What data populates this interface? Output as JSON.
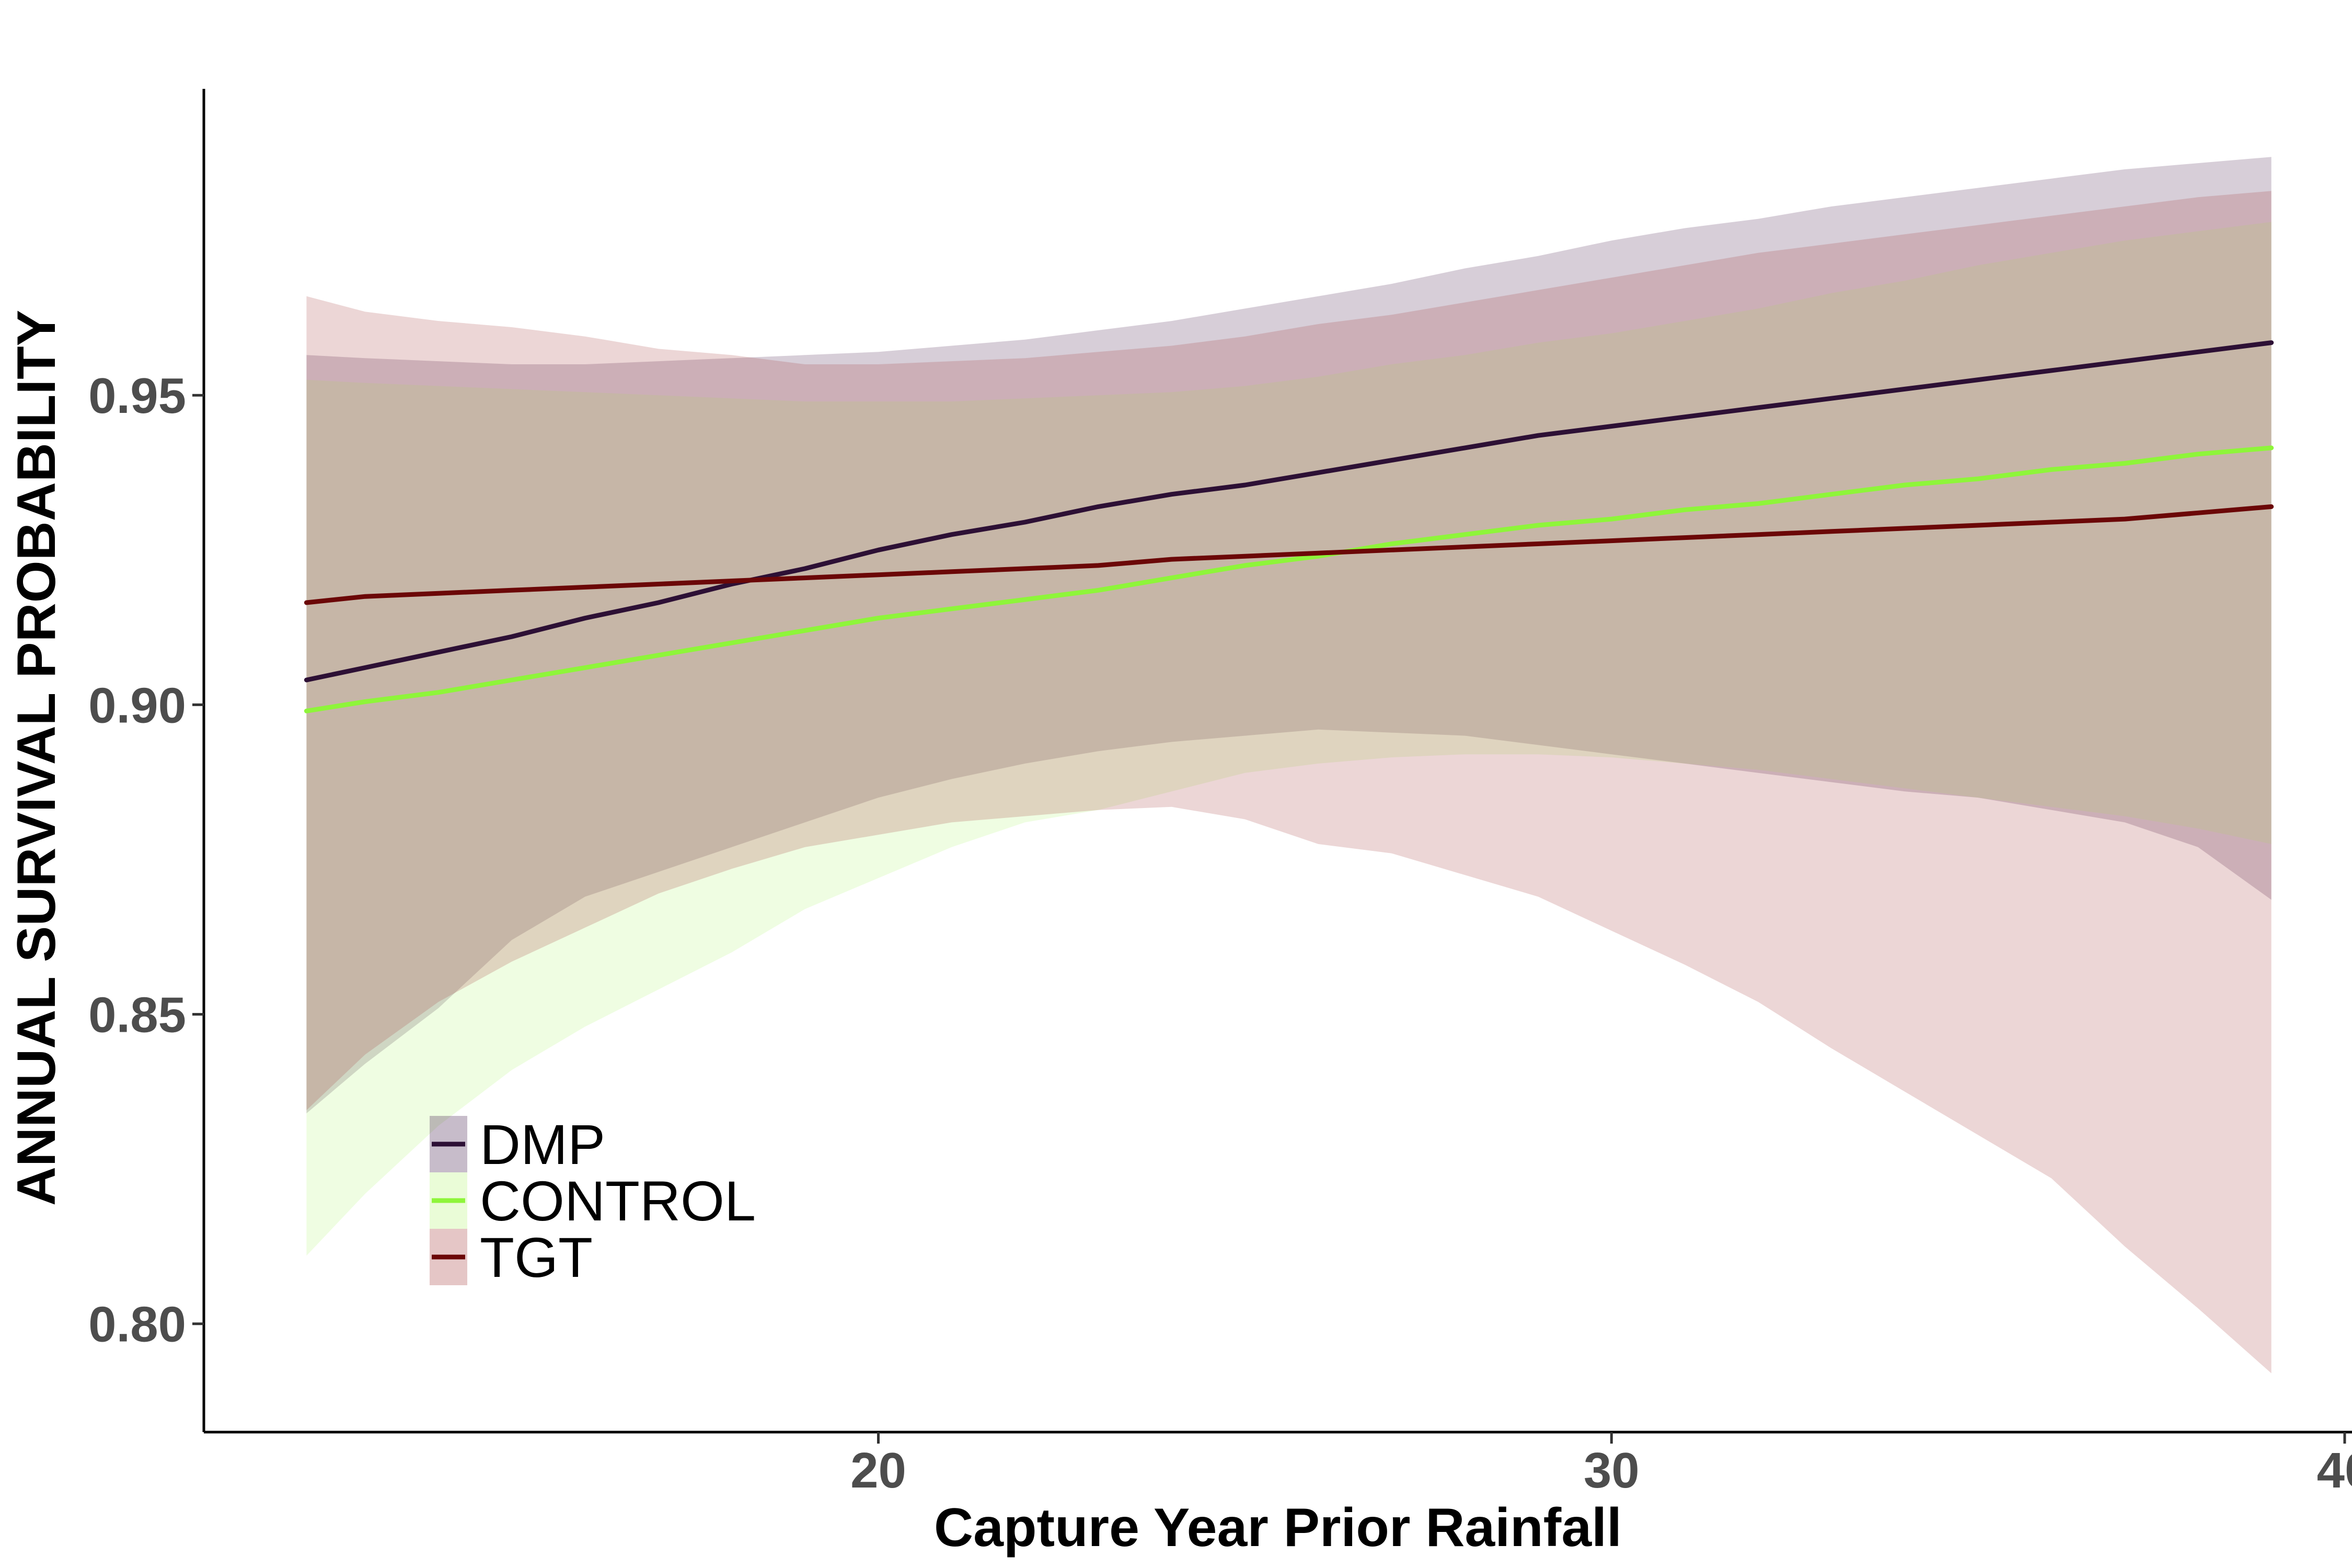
{
  "chart_data": {
    "type": "line",
    "title": "",
    "xlabel": "Capture Year Prior Rainfall",
    "ylabel": "ANNUAL SURVIVAL PROBABILITY",
    "xlim": [
      10.8,
      40.1
    ],
    "ylim": [
      0.7825,
      0.9995
    ],
    "x_ticks": [
      20,
      30,
      40
    ],
    "x_tick_labels": [
      "20",
      "30",
      "40"
    ],
    "y_ticks": [
      0.8,
      0.85,
      0.9,
      0.95
    ],
    "y_tick_labels": [
      "0.80",
      "0.85",
      "0.90",
      "0.95"
    ],
    "grid": false,
    "legend_position": "bottom-left",
    "band_opacity": 0.22,
    "x": [
      12.2,
      13,
      14,
      15,
      16,
      17,
      18,
      19,
      20,
      21,
      22,
      23,
      24,
      25,
      26,
      27,
      28,
      29,
      30,
      31,
      32,
      33,
      34,
      35,
      36,
      37,
      38,
      39
    ],
    "series": [
      {
        "name": "DMP",
        "color": "#2d1035",
        "band_color": "#47204f",
        "values": [
          0.904,
          0.906,
          0.9085,
          0.911,
          0.914,
          0.9165,
          0.9195,
          0.922,
          0.925,
          0.9275,
          0.9295,
          0.932,
          0.934,
          0.9355,
          0.9375,
          0.9395,
          0.9415,
          0.9435,
          0.945,
          0.9465,
          0.948,
          0.9495,
          0.951,
          0.9525,
          0.954,
          0.9555,
          0.957,
          0.9585
        ],
        "lower": [
          0.834,
          0.842,
          0.851,
          0.862,
          0.869,
          0.873,
          0.877,
          0.881,
          0.885,
          0.888,
          0.8905,
          0.8925,
          0.894,
          0.895,
          0.896,
          0.8955,
          0.895,
          0.8935,
          0.892,
          0.8905,
          0.889,
          0.8875,
          0.886,
          0.885,
          0.883,
          0.881,
          0.877,
          0.8685
        ],
        "upper": [
          0.9565,
          0.956,
          0.9555,
          0.955,
          0.955,
          0.9555,
          0.956,
          0.9565,
          0.957,
          0.958,
          0.959,
          0.9605,
          0.962,
          0.964,
          0.966,
          0.968,
          0.9705,
          0.9725,
          0.975,
          0.977,
          0.9785,
          0.9805,
          0.982,
          0.9835,
          0.985,
          0.9865,
          0.9875,
          0.9885
        ]
      },
      {
        "name": "CONTROL",
        "color": "#8ef53a",
        "band_color": "#b8f57a",
        "values": [
          0.899,
          0.9005,
          0.902,
          0.904,
          0.906,
          0.908,
          0.91,
          0.912,
          0.914,
          0.9155,
          0.917,
          0.9185,
          0.9205,
          0.9225,
          0.924,
          0.926,
          0.9275,
          0.929,
          0.93,
          0.9315,
          0.9325,
          0.934,
          0.9355,
          0.9365,
          0.938,
          0.939,
          0.9405,
          0.9415
        ],
        "lower": [
          0.811,
          0.821,
          0.832,
          0.841,
          0.848,
          0.854,
          0.86,
          0.867,
          0.872,
          0.877,
          0.881,
          0.883,
          0.886,
          0.889,
          0.8905,
          0.8915,
          0.892,
          0.892,
          0.8915,
          0.8905,
          0.8895,
          0.888,
          0.8865,
          0.885,
          0.8835,
          0.882,
          0.88,
          0.8775
        ],
        "upper": [
          0.9525,
          0.952,
          0.9515,
          0.951,
          0.9505,
          0.95,
          0.9495,
          0.949,
          0.949,
          0.949,
          0.9495,
          0.95,
          0.9505,
          0.9515,
          0.953,
          0.955,
          0.9565,
          0.9585,
          0.96,
          0.962,
          0.964,
          0.9665,
          0.9685,
          0.971,
          0.973,
          0.975,
          0.9765,
          0.978
        ]
      },
      {
        "name": "TGT",
        "color": "#6b0707",
        "band_color": "#a84343",
        "values": [
          0.9165,
          0.9175,
          0.918,
          0.9185,
          0.919,
          0.9195,
          0.92,
          0.9205,
          0.921,
          0.9215,
          0.922,
          0.9225,
          0.9235,
          0.924,
          0.9245,
          0.925,
          0.9255,
          0.926,
          0.9265,
          0.927,
          0.9275,
          0.928,
          0.9285,
          0.929,
          0.9295,
          0.93,
          0.931,
          0.932
        ],
        "lower": [
          0.8345,
          0.8435,
          0.852,
          0.8585,
          0.864,
          0.8695,
          0.8735,
          0.877,
          0.879,
          0.881,
          0.882,
          0.883,
          0.8835,
          0.8815,
          0.8775,
          0.876,
          0.8725,
          0.869,
          0.8635,
          0.858,
          0.852,
          0.8445,
          0.8375,
          0.8305,
          0.8235,
          0.8125,
          0.8025,
          0.792
        ],
        "upper": [
          0.966,
          0.9635,
          0.962,
          0.961,
          0.9595,
          0.9575,
          0.9565,
          0.955,
          0.955,
          0.9555,
          0.956,
          0.957,
          0.958,
          0.9595,
          0.9615,
          0.963,
          0.965,
          0.967,
          0.969,
          0.971,
          0.973,
          0.9745,
          0.976,
          0.9775,
          0.979,
          0.9805,
          0.982,
          0.983
        ]
      }
    ]
  }
}
